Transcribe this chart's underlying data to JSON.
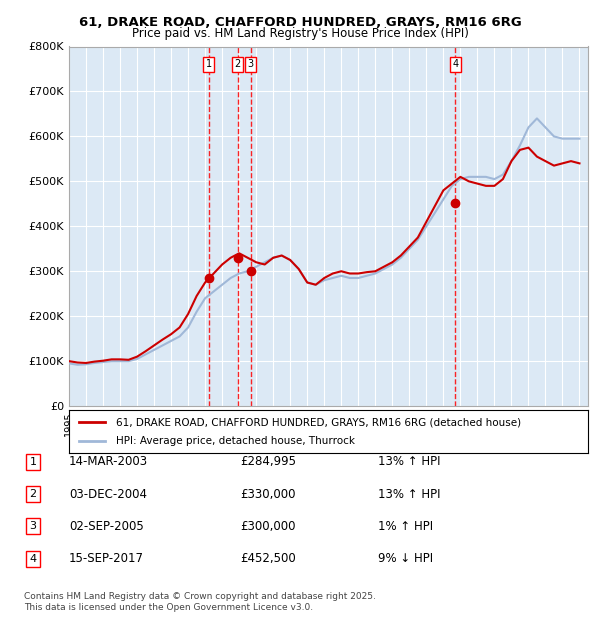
{
  "title_line1": "61, DRAKE ROAD, CHAFFORD HUNDRED, GRAYS, RM16 6RG",
  "title_line2": "Price paid vs. HM Land Registry's House Price Index (HPI)",
  "background_color": "#dce9f5",
  "plot_bg_color": "#dce9f5",
  "fig_bg_color": "#ffffff",
  "grid_color": "#ffffff",
  "hpi_color": "#a0b8d8",
  "price_color": "#cc0000",
  "ylim": [
    0,
    800000
  ],
  "yticks": [
    0,
    100000,
    200000,
    300000,
    400000,
    500000,
    600000,
    700000,
    800000
  ],
  "ytick_labels": [
    "£0",
    "£100K",
    "£200K",
    "£300K",
    "£400K",
    "£500K",
    "£600K",
    "£700K",
    "£800K"
  ],
  "sale_events": [
    {
      "label": "1",
      "date": 2003.2,
      "price": 284995,
      "hpi_pct": "13%",
      "direction": "↑",
      "date_str": "14-MAR-2003",
      "price_str": "£284,995"
    },
    {
      "label": "2",
      "date": 2004.92,
      "price": 330000,
      "hpi_pct": "13%",
      "direction": "↑",
      "date_str": "03-DEC-2004",
      "price_str": "£330,000"
    },
    {
      "label": "3",
      "date": 2005.67,
      "price": 300000,
      "hpi_pct": "1%",
      "direction": "↑",
      "date_str": "02-SEP-2005",
      "price_str": "£300,000"
    },
    {
      "label": "4",
      "date": 2017.71,
      "price": 452500,
      "hpi_pct": "9%",
      "direction": "↓",
      "date_str": "15-SEP-2017",
      "price_str": "£452,500"
    }
  ],
  "legend_label_price": "61, DRAKE ROAD, CHAFFORD HUNDRED, GRAYS, RM16 6RG (detached house)",
  "legend_label_hpi": "HPI: Average price, detached house, Thurrock",
  "footer_line1": "Contains HM Land Registry data © Crown copyright and database right 2025.",
  "footer_line2": "This data is licensed under the Open Government Licence v3.0.",
  "hpi_data": {
    "years": [
      1995.0,
      1995.5,
      1996.0,
      1996.5,
      1997.0,
      1997.5,
      1998.0,
      1998.5,
      1999.0,
      1999.5,
      2000.0,
      2000.5,
      2001.0,
      2001.5,
      2002.0,
      2002.5,
      2003.0,
      2003.5,
      2004.0,
      2004.5,
      2005.0,
      2005.5,
      2006.0,
      2006.5,
      2007.0,
      2007.5,
      2008.0,
      2008.5,
      2009.0,
      2009.5,
      2010.0,
      2010.5,
      2011.0,
      2011.5,
      2012.0,
      2012.5,
      2013.0,
      2013.5,
      2014.0,
      2014.5,
      2015.0,
      2015.5,
      2016.0,
      2016.5,
      2017.0,
      2017.5,
      2018.0,
      2018.5,
      2019.0,
      2019.5,
      2020.0,
      2020.5,
      2021.0,
      2021.5,
      2022.0,
      2022.5,
      2023.0,
      2023.5,
      2024.0,
      2024.5,
      2025.0
    ],
    "values": [
      95000,
      92000,
      93000,
      96000,
      98000,
      100000,
      100000,
      100000,
      105000,
      115000,
      125000,
      135000,
      145000,
      155000,
      175000,
      210000,
      240000,
      255000,
      270000,
      285000,
      295000,
      300000,
      310000,
      320000,
      330000,
      335000,
      325000,
      305000,
      275000,
      270000,
      280000,
      285000,
      290000,
      285000,
      285000,
      290000,
      295000,
      305000,
      315000,
      330000,
      350000,
      370000,
      400000,
      430000,
      460000,
      490000,
      505000,
      510000,
      510000,
      510000,
      505000,
      515000,
      545000,
      580000,
      620000,
      640000,
      620000,
      600000,
      595000,
      595000,
      595000
    ]
  },
  "price_data": {
    "years": [
      1995.0,
      1995.5,
      1996.0,
      1996.5,
      1997.0,
      1997.5,
      1998.0,
      1998.5,
      1999.0,
      1999.5,
      2000.0,
      2000.5,
      2001.0,
      2001.5,
      2002.0,
      2002.5,
      2003.0,
      2003.5,
      2004.0,
      2004.5,
      2005.0,
      2005.5,
      2006.0,
      2006.5,
      2007.0,
      2007.5,
      2008.0,
      2008.5,
      2009.0,
      2009.5,
      2010.0,
      2010.5,
      2011.0,
      2011.5,
      2012.0,
      2012.5,
      2013.0,
      2013.5,
      2014.0,
      2014.5,
      2015.0,
      2015.5,
      2016.0,
      2016.5,
      2017.0,
      2017.5,
      2018.0,
      2018.5,
      2019.0,
      2019.5,
      2020.0,
      2020.5,
      2021.0,
      2021.5,
      2022.0,
      2022.5,
      2023.0,
      2023.5,
      2024.0,
      2024.5,
      2025.0
    ],
    "values": [
      100000,
      97000,
      96000,
      99000,
      101000,
      104000,
      104000,
      103000,
      110000,
      122000,
      135000,
      148000,
      160000,
      175000,
      205000,
      245000,
      275000,
      295000,
      315000,
      330000,
      340000,
      330000,
      320000,
      315000,
      330000,
      335000,
      325000,
      305000,
      275000,
      270000,
      285000,
      295000,
      300000,
      295000,
      295000,
      298000,
      300000,
      310000,
      320000,
      335000,
      355000,
      375000,
      410000,
      445000,
      480000,
      495000,
      510000,
      500000,
      495000,
      490000,
      490000,
      505000,
      545000,
      570000,
      575000,
      555000,
      545000,
      535000,
      540000,
      545000,
      540000
    ]
  }
}
